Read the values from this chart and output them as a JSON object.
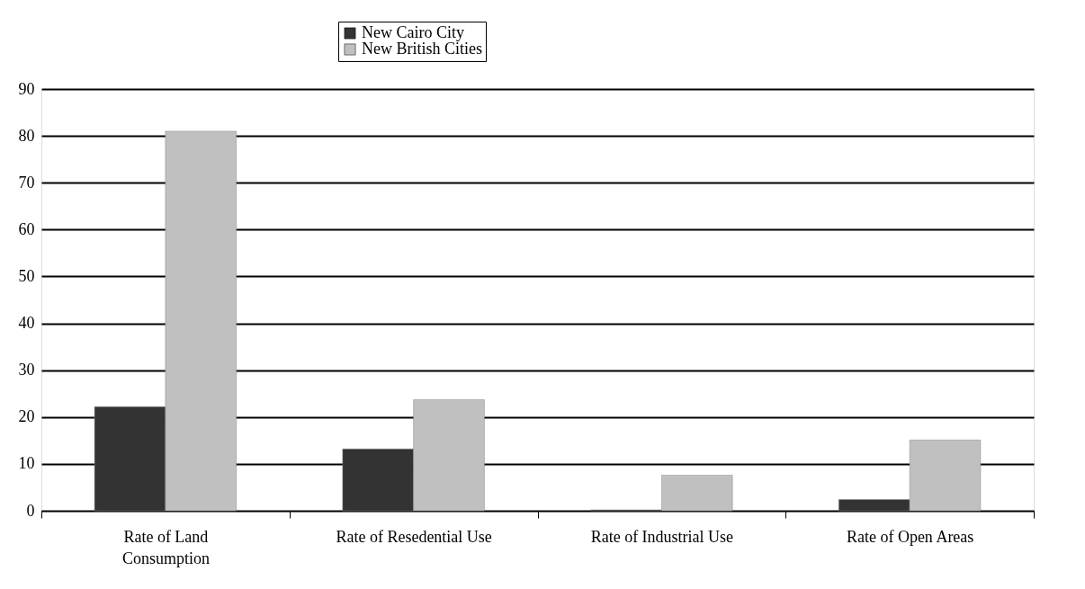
{
  "chart_data": {
    "type": "bar",
    "categories": [
      "Rate of Land Consumption",
      "Rate of Resedential Use",
      "Rate of Industrial Use",
      "Rate of Open Areas"
    ],
    "series": [
      {
        "name": "New Cairo City",
        "color": "#333333",
        "values": [
          22.2,
          13.2,
          0.2,
          2.4
        ]
      },
      {
        "name": "New British Cities",
        "color": "#c0c0c0",
        "values": [
          81,
          23.7,
          7.6,
          15.1
        ]
      }
    ],
    "ylim": [
      0,
      90
    ],
    "yticks": [
      0,
      10,
      20,
      30,
      40,
      50,
      60,
      70,
      80,
      90
    ],
    "grid": "y",
    "legend": "top"
  }
}
